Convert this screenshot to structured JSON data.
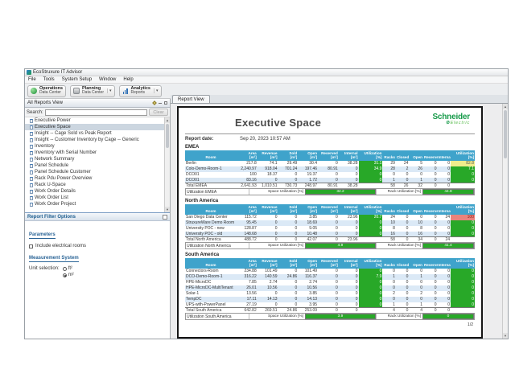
{
  "app": {
    "title": "EcoStruxure IT Advisor",
    "menu_items": [
      "File",
      "Tools",
      "System Setup",
      "Window",
      "Help"
    ],
    "toolbar_buttons": [
      {
        "title": "Operations",
        "subtitle": "Data Center",
        "icon": "operations-globe-icon"
      },
      {
        "title": "Planning",
        "subtitle": "Data Center",
        "icon": "planning-icon"
      },
      {
        "title": "Analytics",
        "subtitle": "Reports",
        "icon": "analytics-chart-icon"
      }
    ]
  },
  "sidebar": {
    "panel_title": "All Reports View",
    "search_label": "Search:",
    "search_value": "",
    "clear_button": "Clear",
    "report_items": [
      "Executive Power",
      "Executive Space",
      "Insight -- Cage Sold vs Peak Report",
      "Insight -- Customer Inventory by Cage -- Generic",
      "Inventory",
      "Inventory with Serial Number",
      "Network Summary",
      "Panel Schedule",
      "Panel Schedule Customer",
      "Rack Pdu Power Overview",
      "Rack U-Space",
      "Work Order Details",
      "Work Order List",
      "Work Order Project"
    ],
    "selected_item": "Executive Space",
    "filter_section_title": "Report Filter Options",
    "parameters_title": "Parameters",
    "include_electrical_label": "Include electrical rooms",
    "include_electrical_checked": false,
    "measurement_title": "Measurement System",
    "unit_selection_label": "Unit selection:",
    "unit_options": [
      {
        "label": "ft²",
        "selected": false
      },
      {
        "label": "m²",
        "selected": true
      }
    ]
  },
  "report_view": {
    "tab_label": "Report View",
    "title": "Executive Space",
    "brand": {
      "name": "Schneider",
      "sub": "Electric"
    },
    "report_date_label": "Report date:",
    "report_date": "Sep 20, 2023 10:57 AM",
    "page_indicator": "1/2",
    "colors": {
      "header_blue": "#3fa3cb",
      "green": "#28a828",
      "yellow": "#f0ec8c",
      "red": "#e8837c"
    },
    "table": {
      "space_headers": [
        [
          "Room",
          ""
        ],
        [
          "Area",
          "[m²]"
        ],
        [
          "Revenue",
          "[m²]"
        ],
        [
          "Sold",
          "[m²]"
        ],
        [
          "Open",
          "[m²]"
        ],
        [
          "Reserved",
          "[m²]"
        ],
        [
          "Internal",
          "[m²]"
        ],
        [
          "Utilization",
          "[%]"
        ]
      ],
      "rack_headers": [
        [
          "Racks",
          ""
        ],
        [
          "Closed",
          ""
        ],
        [
          "Open",
          ""
        ],
        [
          "Reserved",
          ""
        ],
        [
          "Internal",
          ""
        ],
        [
          "Utilization",
          "[%]"
        ]
      ],
      "space_util_label": "Space Utilization [%]",
      "rack_util_label": "Rack Utilization [%]"
    },
    "sections": [
      {
        "name": "EMEA",
        "rows": [
          {
            "room": "Berlin",
            "space": [
              "217.8",
              "74.1",
              "29.49",
              "30.4",
              "0",
              "38.28"
            ],
            "space_util": {
              "value": "31.1",
              "color": "green"
            },
            "racks": [
              "29",
              "24",
              "5",
              "0",
              "0"
            ],
            "rack_util": {
              "value": "82.8",
              "color": "yellow"
            }
          },
          {
            "room": "Colo-Demo-Room-1",
            "space": [
              "2,240.97",
              "918.04",
              "701.24",
              "197.46",
              "80.91",
              "0"
            ],
            "space_util": {
              "value": "34.9",
              "color": "green"
            },
            "racks": [
              "28",
              "2",
              "26",
              "0",
              "0"
            ],
            "rack_util": {
              "value": "7.1",
              "color": "green"
            }
          },
          {
            "room": "DCO01",
            "space": [
              "100",
              "18.37",
              "0",
              "19.37",
              "0",
              "0"
            ],
            "space_util": {
              "value": "0",
              "color": "green"
            },
            "racks": [
              "0",
              "0",
              "0",
              "0",
              "0"
            ],
            "rack_util": {
              "value": "0",
              "color": "green"
            }
          },
          {
            "room": "DCO01",
            "space": [
              "83.16",
              "0",
              "0",
              "1.72",
              "0",
              "0"
            ],
            "space_util": {
              "value": "0",
              "color": "green"
            },
            "racks": [
              "1",
              "0",
              "1",
              "0",
              "0"
            ],
            "rack_util": {
              "value": "0",
              "color": "green"
            }
          }
        ],
        "total_label": "Total EMEA",
        "total_space": [
          "2,641.93",
          "1,010.51",
          "730.73",
          "248.97",
          "80.91",
          "38.28"
        ],
        "total_racks": [
          "58",
          "26",
          "32",
          "0",
          "0"
        ],
        "summary_label": "Utilization EMEA",
        "space_util_value": "32.2",
        "rack_util_value": "44.8"
      },
      {
        "name": "North America",
        "rows": [
          {
            "room": "San Diego Data Center",
            "space": [
              "115.72",
              "0",
              "0",
              "3.85",
              "0",
              "23.96"
            ],
            "space_util": {
              "value": "20.7",
              "color": "green"
            },
            "racks": [
              "24",
              "0",
              "0",
              "0",
              "24"
            ],
            "rack_util": {
              "value": "100",
              "color": "red"
            }
          },
          {
            "room": "StruxureWare Demo Room",
            "space": [
              "95.45",
              "0",
              "0",
              "18.69",
              "0",
              "0"
            ],
            "space_util": {
              "value": "0",
              "color": "green"
            },
            "racks": [
              "10",
              "0",
              "10",
              "0",
              "0"
            ],
            "rack_util": {
              "value": "0",
              "color": "green"
            }
          },
          {
            "room": "University POC - new",
            "space": [
              "128.87",
              "0",
              "0",
              "9.05",
              "0",
              "0"
            ],
            "space_util": {
              "value": "0",
              "color": "green"
            },
            "racks": [
              "8",
              "0",
              "8",
              "0",
              "0"
            ],
            "rack_util": {
              "value": "0",
              "color": "green"
            }
          },
          {
            "room": "University POC - old",
            "space": [
              "148.68",
              "0",
              "0",
              "10.48",
              "0",
              "0"
            ],
            "space_util": {
              "value": "0",
              "color": "green"
            },
            "racks": [
              "16",
              "0",
              "16",
              "0",
              "0"
            ],
            "rack_util": {
              "value": "0",
              "color": "green"
            }
          }
        ],
        "total_label": "Total North America",
        "total_space": [
          "488.72",
          "0",
          "0",
          "42.07",
          "0",
          "23.96"
        ],
        "total_racks": [
          "58",
          "0",
          "34",
          "0",
          "24"
        ],
        "summary_label": "Utilization North America",
        "space_util_value": "4.9",
        "rack_util_value": "41.4"
      },
      {
        "name": "South America",
        "rows": [
          {
            "room": "Connectors-Room",
            "space": [
              "234.88",
              "101.49",
              "0",
              "101.49",
              "0",
              "0"
            ],
            "space_util": {
              "value": "0",
              "color": "green"
            },
            "racks": [
              "0",
              "0",
              "0",
              "0",
              "0"
            ],
            "rack_util": {
              "value": "0",
              "color": "green"
            }
          },
          {
            "room": "DCO-Demo-Room-1",
            "space": [
              "316.22",
              "140.59",
              "24.86",
              "116.37",
              "0",
              "0"
            ],
            "space_util": {
              "value": "7.9",
              "color": "green"
            },
            "racks": [
              "1",
              "0",
              "1",
              "0",
              "0"
            ],
            "rack_util": {
              "value": "0",
              "color": "green"
            }
          },
          {
            "room": "HPE-MicroDC",
            "space": [
              "7.85",
              "2.74",
              "0",
              "2.74",
              "0",
              "0"
            ],
            "space_util": {
              "value": "0",
              "color": "green"
            },
            "racks": [
              "0",
              "0",
              "0",
              "0",
              "0"
            ],
            "rack_util": {
              "value": "0",
              "color": "green"
            }
          },
          {
            "room": "HPE-MicroDC-MultiTenant",
            "space": [
              "26.01",
              "10.56",
              "0",
              "10.56",
              "0",
              "0"
            ],
            "space_util": {
              "value": "0",
              "color": "green"
            },
            "racks": [
              "0",
              "0",
              "0",
              "0",
              "0"
            ],
            "rack_util": {
              "value": "0",
              "color": "green"
            }
          },
          {
            "room": "Solar-1",
            "space": [
              "13.56",
              "0",
              "0",
              "3.85",
              "0",
              "0"
            ],
            "space_util": {
              "value": "0",
              "color": "green"
            },
            "racks": [
              "2",
              "0",
              "2",
              "0",
              "0"
            ],
            "rack_util": {
              "value": "0",
              "color": "green"
            }
          },
          {
            "room": "TempDC",
            "space": [
              "17.11",
              "14.13",
              "0",
              "14.13",
              "0",
              "0"
            ],
            "space_util": {
              "value": "0",
              "color": "green"
            },
            "racks": [
              "0",
              "0",
              "0",
              "0",
              "0"
            ],
            "rack_util": {
              "value": "0",
              "color": "green"
            }
          },
          {
            "room": "UPS-with-PowerPanel",
            "space": [
              "27.19",
              "0",
              "0",
              "3.95",
              "0",
              "0"
            ],
            "space_util": {
              "value": "0",
              "color": "green"
            },
            "racks": [
              "1",
              "0",
              "1",
              "0",
              "0"
            ],
            "rack_util": {
              "value": "0",
              "color": "green"
            }
          }
        ],
        "total_label": "Total South America",
        "total_space": [
          "642.82",
          "269.51",
          "24.86",
          "253.09",
          "0",
          "0"
        ],
        "total_racks": [
          "4",
          "0",
          "4",
          "0",
          "0"
        ],
        "summary_label": "Utilization South America",
        "space_util_value": "3.9",
        "rack_util_value": "0"
      }
    ]
  }
}
